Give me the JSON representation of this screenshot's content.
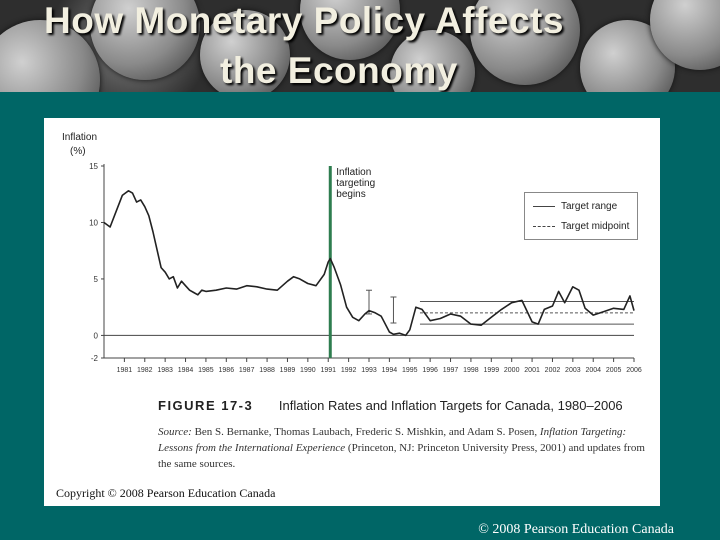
{
  "slide": {
    "title_line1": "How Monetary Policy Affects",
    "title_line2": "the Economy",
    "footer": "© 2008 Pearson Education Canada"
  },
  "figure": {
    "number": "FIGURE 17-3",
    "caption": "Inflation Rates and Inflation Targets for Canada, 1980–2006",
    "source_label": "Source:",
    "source_authors": "Ben S. Bernanke, Thomas Laubach, Frederic S. Mishkin, and Adam S. Posen,",
    "source_title": "Inflation Targeting: Lessons from the International Experience",
    "source_pub": "(Princeton, NJ: Princeton University Press, 2001)",
    "source_update": "and updates from the same sources.",
    "copyright": "Copyright © 2008 Pearson Education Canada"
  },
  "chart_data": {
    "type": "line",
    "ylabel_line1": "Inflation",
    "ylabel_line2": "(%)",
    "ylim": [
      -2,
      15
    ],
    "yticks": [
      15,
      10,
      5,
      0,
      -2
    ],
    "xlim": [
      1980,
      2006
    ],
    "xticks": [
      "1981",
      "1982",
      "1983",
      "1984",
      "1985",
      "1986",
      "1987",
      "1988",
      "1989",
      "1990",
      "1991",
      "1992",
      "1993",
      "1994",
      "1995",
      "1996",
      "1997",
      "1998",
      "1999",
      "2000",
      "2001",
      "2002",
      "2003",
      "2004",
      "2005",
      "2006"
    ],
    "annotation_line1": "Inflation",
    "annotation_line2": "targeting",
    "annotation_line3": "begins",
    "annotation_x": 1991.1,
    "legend": {
      "target_range": "Target range",
      "target_midpoint": "Target midpoint"
    },
    "series": [
      {
        "x": [
          1980.0,
          1980.3,
          1980.6,
          1980.9,
          1981.2,
          1981.4,
          1981.6,
          1981.8,
          1982.0,
          1982.2,
          1982.4,
          1982.6,
          1982.8,
          1983.0,
          1983.2,
          1983.4,
          1983.6,
          1983.8,
          1984.0,
          1984.2,
          1984.4,
          1984.6,
          1984.8,
          1985.0,
          1985.5,
          1986.0,
          1986.5,
          1987.0,
          1987.5,
          1988.0,
          1988.5,
          1989.0,
          1989.3,
          1989.6,
          1990.0,
          1990.4,
          1990.8,
          1991.0,
          1991.1,
          1991.3,
          1991.6,
          1991.9,
          1992.2,
          1992.5,
          1992.8,
          1993.0,
          1993.3,
          1993.6,
          1994.0,
          1994.2,
          1994.5,
          1994.8,
          1995.0,
          1995.3,
          1995.6,
          1996.0,
          1996.5,
          1997.0,
          1997.5,
          1998.0,
          1998.5,
          1999.0,
          1999.5,
          2000.0,
          2000.5,
          2001.0,
          2001.3,
          2001.6,
          2002.0,
          2002.3,
          2002.6,
          2003.0,
          2003.3,
          2003.6,
          2004.0,
          2004.5,
          2005.0,
          2005.5,
          2005.8,
          2006.0
        ],
        "values": [
          10.0,
          9.6,
          11.0,
          12.4,
          12.8,
          12.6,
          11.8,
          12.0,
          11.4,
          10.6,
          9.2,
          7.6,
          6.0,
          5.6,
          5.0,
          5.2,
          4.2,
          4.8,
          4.4,
          4.0,
          3.8,
          3.6,
          4.0,
          3.9,
          4.0,
          4.2,
          4.1,
          4.4,
          4.3,
          4.1,
          4.0,
          4.8,
          5.2,
          5.0,
          4.6,
          4.4,
          5.4,
          6.5,
          6.8,
          6.0,
          4.5,
          2.5,
          1.6,
          1.3,
          1.9,
          2.2,
          2.0,
          1.7,
          0.3,
          0.1,
          0.2,
          0.0,
          0.5,
          2.5,
          2.3,
          1.3,
          1.5,
          1.9,
          1.7,
          1.0,
          0.9,
          1.6,
          2.3,
          2.9,
          3.1,
          1.2,
          1.0,
          2.3,
          2.6,
          3.9,
          2.9,
          4.3,
          4.0,
          2.4,
          1.8,
          2.1,
          2.4,
          2.3,
          3.5,
          2.2
        ]
      }
    ],
    "target_range_band": {
      "x_start": 1995.5,
      "x_end": 2006,
      "lower": 1,
      "upper": 3
    },
    "target_midpoint": {
      "x_start": 1995.5,
      "x_end": 2006,
      "value": 2
    },
    "early_targets": [
      {
        "x": 1993.0,
        "lower": 1.9,
        "upper": 4.0
      },
      {
        "x": 1994.2,
        "lower": 1.1,
        "upper": 3.4
      }
    ]
  }
}
